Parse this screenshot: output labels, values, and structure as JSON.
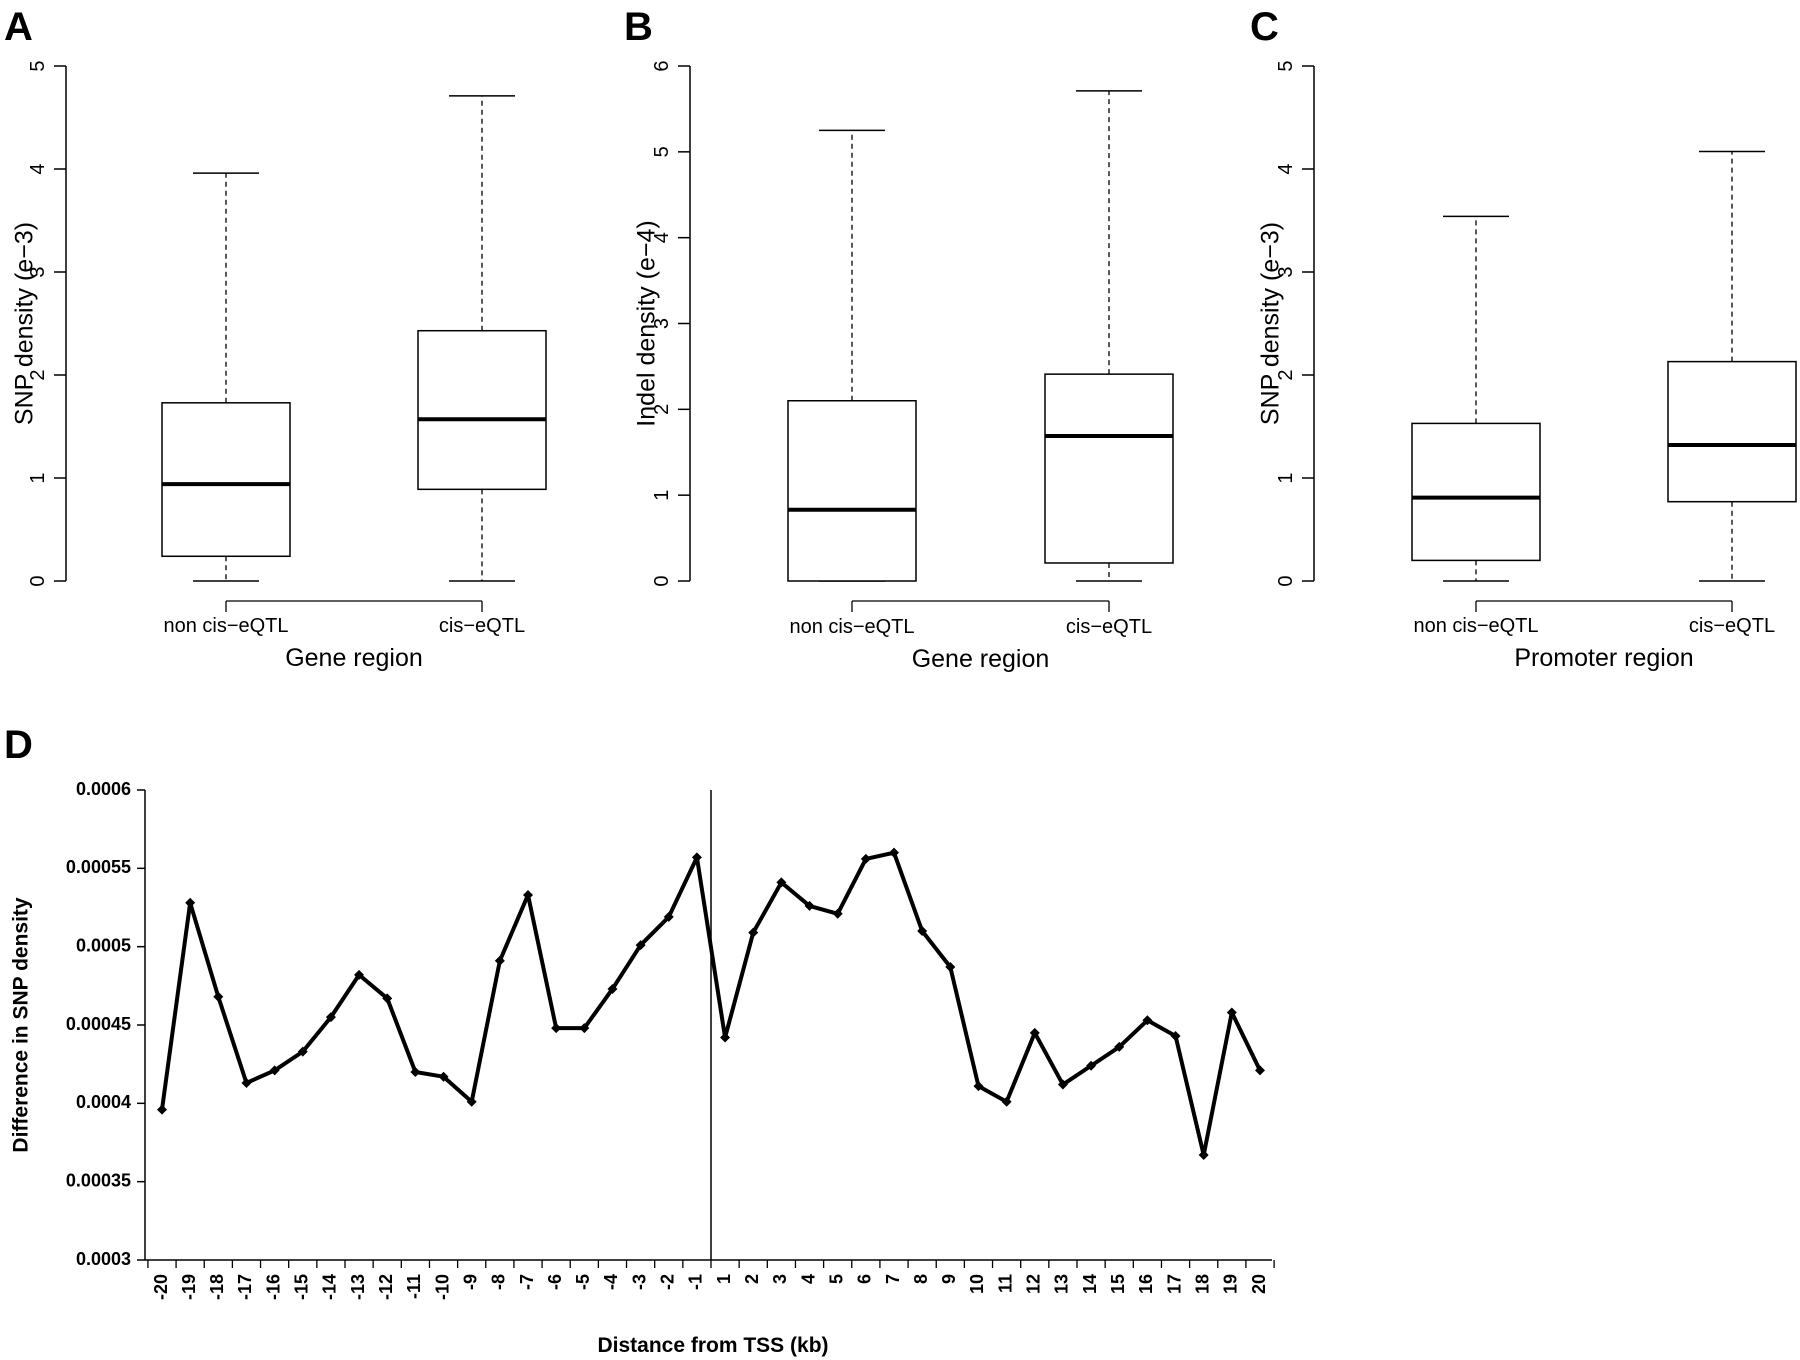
{
  "chart_data": [
    {
      "panel": "A",
      "type": "box",
      "ylabel": "SNP density (e−3)",
      "xlabel": "Gene region",
      "ylim": [
        0,
        5
      ],
      "yticks": [
        "0",
        "1",
        "2",
        "3",
        "4",
        "5"
      ],
      "categories": [
        "non cis−eQTL",
        "cis−eQTL"
      ],
      "boxes": [
        {
          "min": 0,
          "q1": 0.24,
          "median": 0.94,
          "q3": 1.73,
          "max": 3.96
        },
        {
          "min": 0,
          "q1": 0.89,
          "median": 1.57,
          "q3": 2.43,
          "max": 4.71
        }
      ]
    },
    {
      "panel": "B",
      "type": "box",
      "ylabel": "Indel density (e−4)",
      "xlabel": "Gene region",
      "ylim": [
        0,
        6
      ],
      "yticks": [
        "0",
        "1",
        "2",
        "3",
        "4",
        "5",
        "6"
      ],
      "categories": [
        "non cis−eQTL",
        "cis−eQTL"
      ],
      "boxes": [
        {
          "min": 0,
          "q1": 0,
          "median": 0.83,
          "q3": 2.1,
          "max": 5.25
        },
        {
          "min": 0,
          "q1": 0.21,
          "median": 1.69,
          "q3": 2.41,
          "max": 5.71
        }
      ]
    },
    {
      "panel": "C",
      "type": "box",
      "ylabel": "SNP density (e−3)",
      "xlabel": "Promoter region",
      "ylim": [
        0,
        5
      ],
      "yticks": [
        "0",
        "1",
        "2",
        "3",
        "4",
        "5"
      ],
      "categories": [
        "non cis−eQTL",
        "cis−eQTL"
      ],
      "boxes": [
        {
          "min": 0,
          "q1": 0.2,
          "median": 0.81,
          "q3": 1.53,
          "max": 3.54
        },
        {
          "min": 0,
          "q1": 0.77,
          "median": 1.32,
          "q3": 2.13,
          "max": 4.17
        }
      ]
    },
    {
      "panel": "D",
      "type": "line",
      "ylabel": "Difference in SNP density",
      "xlabel": "Distance from TSS (kb)",
      "ylim": [
        0.0003,
        0.0006
      ],
      "yticks": [
        "0.0003",
        "0.00035",
        "0.0004",
        "0.00045",
        "0.0005",
        "0.00055",
        "0.0006"
      ],
      "x": [
        "-20",
        "-19",
        "-18",
        "-17",
        "-16",
        "-15",
        "-14",
        "-13",
        "-12",
        "-11",
        "-10",
        "-9",
        "-8",
        "-7",
        "-6",
        "-5",
        "-4",
        "-3",
        "-2",
        "-1",
        "1",
        "2",
        "3",
        "4",
        "5",
        "6",
        "7",
        "8",
        "9",
        "10",
        "11",
        "12",
        "13",
        "14",
        "15",
        "16",
        "17",
        "18",
        "19",
        "20"
      ],
      "values": [
        0.000396,
        0.000528,
        0.000468,
        0.000413,
        0.000421,
        0.000433,
        0.000455,
        0.000482,
        0.000467,
        0.00042,
        0.000417,
        0.000401,
        0.000491,
        0.000533,
        0.000448,
        0.000448,
        0.000473,
        0.000501,
        0.000519,
        0.000557,
        0.000442,
        0.000509,
        0.000541,
        0.000526,
        0.000521,
        0.000556,
        0.00056,
        0.00051,
        0.000487,
        0.000411,
        0.000401,
        0.000445,
        0.000412,
        0.000424,
        0.000436,
        0.000453,
        0.000443,
        0.000367,
        0.000458,
        0.000421
      ],
      "vline_between": [
        "-1",
        "1"
      ]
    }
  ],
  "panel_labels": [
    "A",
    "B",
    "C",
    "D"
  ]
}
